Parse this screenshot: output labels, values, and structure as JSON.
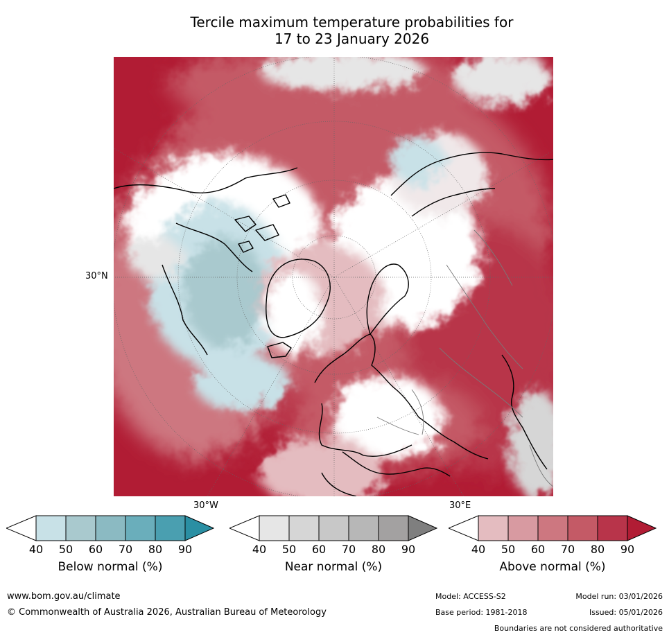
{
  "title": {
    "line1": "Tercile maximum temperature probabilities for",
    "line2": "17 to 23 January 2026"
  },
  "map": {
    "lat_label": "30°N",
    "lon_labels": {
      "west": "30°W",
      "east": "30°E"
    },
    "projection": "north-polar-stereographic",
    "colors": {
      "ocean_above": "#b82238",
      "land_border": "#000000",
      "country_border": "#7a7a7a"
    }
  },
  "legends": [
    {
      "label": "Below normal (%)",
      "ticks": [
        "40",
        "50",
        "60",
        "70",
        "80",
        "90"
      ],
      "colors": [
        "#ffffff",
        "#c8e1e7",
        "#a9c9ce",
        "#8bbac2",
        "#6aaebb",
        "#4a9fb0",
        "#2a8fa3"
      ]
    },
    {
      "label": "Near normal (%)",
      "ticks": [
        "40",
        "50",
        "60",
        "70",
        "80",
        "90"
      ],
      "colors": [
        "#ffffff",
        "#e6e6e6",
        "#d6d6d6",
        "#c8c8c8",
        "#b7b7b7",
        "#a3a1a1",
        "#7f7f7f"
      ]
    },
    {
      "label": "Above normal (%)",
      "ticks": [
        "40",
        "50",
        "60",
        "70",
        "80",
        "90"
      ],
      "colors": [
        "#ffffff",
        "#e4bcc0",
        "#d89aa1",
        "#cd7780",
        "#c45a66",
        "#b8344a",
        "#b11c34"
      ]
    }
  ],
  "footer": {
    "website": "www.bom.gov.au/climate",
    "copyright": "© Commonwealth of Australia 2026, Australian Bureau of Meteorology",
    "model": "Model: ACCESS-S2",
    "model_run": "Model run: 03/01/2026",
    "base_period": "Base period: 1981-2018",
    "issued": "Issued: 05/01/2026",
    "disclaimer": "Boundaries are not considered authoritative"
  }
}
